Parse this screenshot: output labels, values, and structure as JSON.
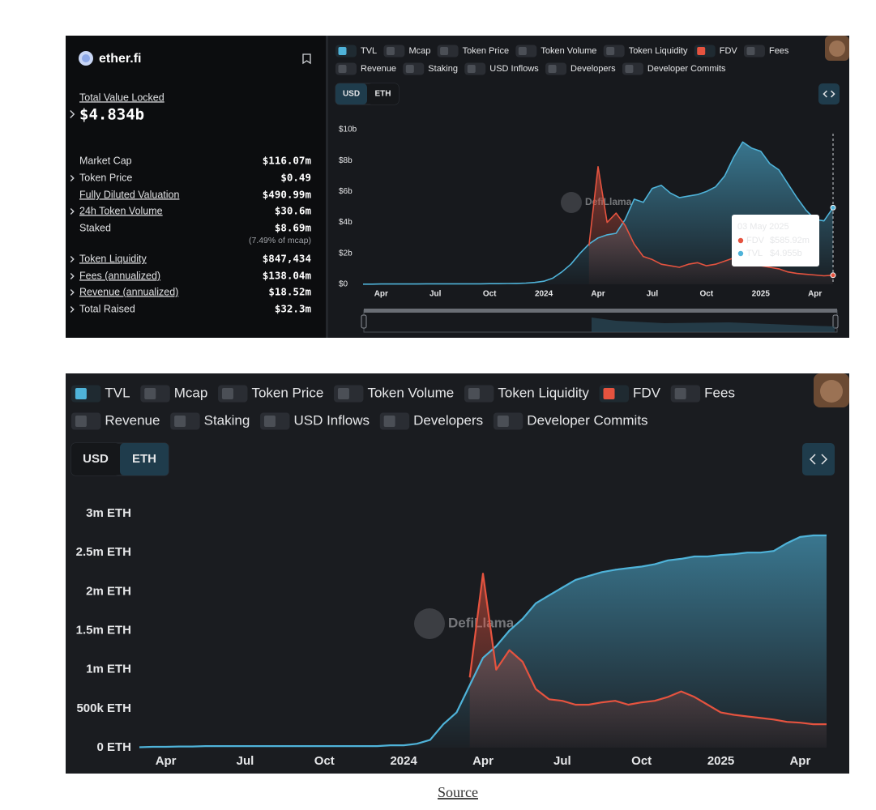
{
  "panel": {
    "protocol": "ether.fi",
    "tvl_label": "Total Value Locked",
    "tvl": "$4.834b",
    "rows": [
      {
        "label": "Market Cap",
        "value": "$116.07m"
      },
      {
        "label": "Token Price",
        "value": "$0.49",
        "expandable": true
      },
      {
        "label": "Fully Diluted Valuation",
        "value": "$490.99m",
        "underline": true
      },
      {
        "label": "24h Token Volume",
        "value": "$30.6m",
        "expandable": true,
        "underline": true
      },
      {
        "label": "Staked",
        "value": "$8.69m",
        "note": "(7.49% of mcap)"
      },
      {
        "label": "Token Liquidity",
        "value": "$847,434",
        "expandable": true,
        "underline": true
      },
      {
        "label": "Fees (annualized)",
        "value": "$138.04m",
        "expandable": true,
        "underline": true
      },
      {
        "label": "Revenue (annualized)",
        "value": "$18.52m",
        "expandable": true,
        "underline": true
      },
      {
        "label": "Total Raised",
        "value": "$32.3m",
        "expandable": true
      }
    ]
  },
  "chart_data": [
    {
      "type": "area",
      "currency_options": [
        "USD",
        "ETH"
      ],
      "currency": "USD",
      "watermark": "DefiLlama",
      "grid": false,
      "other_metrics": [
        "Mcap",
        "Token Price",
        "Token Volume",
        "Token Liquidity",
        "Fees",
        "Revenue",
        "Staking",
        "USD Inflows",
        "Developers",
        "Developer Commits"
      ],
      "categories": [
        null,
        null,
        "Apr",
        null,
        null,
        null,
        null,
        null,
        "Jul",
        null,
        null,
        null,
        null,
        null,
        "Oct",
        null,
        null,
        null,
        null,
        null,
        "2024",
        null,
        null,
        null,
        null,
        null,
        "Apr",
        null,
        null,
        null,
        null,
        null,
        "Jul",
        null,
        null,
        null,
        null,
        null,
        "Oct",
        null,
        null,
        null,
        null,
        null,
        "2025",
        null,
        null,
        null,
        null,
        null,
        "Apr",
        null,
        null
      ],
      "series": [
        {
          "name": "TVL",
          "color": "#4fb3d9",
          "values": [
            0.01,
            0.01,
            0.02,
            0.02,
            0.02,
            0.02,
            0.02,
            0.03,
            0.03,
            0.03,
            0.03,
            0.03,
            0.03,
            0.03,
            0.04,
            0.04,
            0.05,
            0.06,
            0.08,
            0.12,
            0.2,
            0.4,
            0.8,
            1.3,
            2,
            2.6,
            3,
            3.2,
            3.3,
            4.2,
            5.5,
            5.3,
            6.2,
            6.4,
            5.9,
            5.6,
            5.7,
            5.8,
            6,
            6.3,
            7,
            8.2,
            9.2,
            8.8,
            8.6,
            7.8,
            7.4,
            6.5,
            5.6,
            4.8,
            4.2,
            4.1,
            4.955
          ]
        },
        {
          "name": "FDV",
          "color": "#e5533f",
          "values": [
            null,
            null,
            null,
            null,
            null,
            null,
            null,
            null,
            null,
            null,
            null,
            null,
            null,
            null,
            null,
            null,
            null,
            null,
            null,
            null,
            null,
            null,
            null,
            null,
            null,
            2.5,
            7.6,
            4,
            4.6,
            3.8,
            2.6,
            1.8,
            1.6,
            1.3,
            1.2,
            1.1,
            1.3,
            1.4,
            1.2,
            1.3,
            1.5,
            1.7,
            1.6,
            1.3,
            1.2,
            1.1,
            1,
            0.8,
            0.7,
            0.65,
            0.6,
            0.55,
            0.58592
          ]
        }
      ],
      "ylim": [
        0,
        10
      ],
      "yticks": [
        {
          "value": 0,
          "label": "$0"
        },
        {
          "value": 2,
          "label": "$2b"
        },
        {
          "value": 4,
          "label": "$4b"
        },
        {
          "value": 6,
          "label": "$6b"
        },
        {
          "value": 8,
          "label": "$8b"
        },
        {
          "value": 10,
          "label": "$10b"
        }
      ],
      "tooltip": {
        "date": "03 May 2025",
        "items": [
          {
            "name": "FDV",
            "value": 0.58592,
            "label": "$585.92m"
          },
          {
            "name": "TVL",
            "value": 4.955,
            "label": "$4.955b"
          }
        ]
      }
    },
    {
      "type": "area",
      "currency_options": [
        "USD",
        "ETH"
      ],
      "currency": "ETH",
      "watermark": "DefiLlama",
      "grid": false,
      "other_metrics": [
        "Mcap",
        "Token Price",
        "Token Volume",
        "Token Liquidity",
        "Fees",
        "Revenue",
        "Staking",
        "USD Inflows",
        "Developers",
        "Developer Commits"
      ],
      "categories": [
        null,
        null,
        "Apr",
        null,
        null,
        null,
        null,
        null,
        "Jul",
        null,
        null,
        null,
        null,
        null,
        "Oct",
        null,
        null,
        null,
        null,
        null,
        "2024",
        null,
        null,
        null,
        null,
        null,
        "Apr",
        null,
        null,
        null,
        null,
        null,
        "Jul",
        null,
        null,
        null,
        null,
        null,
        "Oct",
        null,
        null,
        null,
        null,
        null,
        "2025",
        null,
        null,
        null,
        null,
        null,
        "Apr",
        null,
        null
      ],
      "series": [
        {
          "name": "TVL",
          "color": "#4fb3d9",
          "values": [
            0.005,
            0.01,
            0.01,
            0.015,
            0.015,
            0.02,
            0.02,
            0.02,
            0.02,
            0.02,
            0.02,
            0.02,
            0.02,
            0.02,
            0.02,
            0.02,
            0.02,
            0.02,
            0.02,
            0.03,
            0.03,
            0.05,
            0.1,
            0.3,
            0.45,
            0.8,
            1.15,
            1.3,
            1.5,
            1.65,
            1.85,
            1.95,
            2.05,
            2.15,
            2.2,
            2.25,
            2.28,
            2.3,
            2.32,
            2.35,
            2.4,
            2.42,
            2.45,
            2.45,
            2.47,
            2.48,
            2.5,
            2.5,
            2.52,
            2.62,
            2.7,
            2.72,
            2.72
          ]
        },
        {
          "name": "FDV",
          "color": "#e5533f",
          "values": [
            null,
            null,
            null,
            null,
            null,
            null,
            null,
            null,
            null,
            null,
            null,
            null,
            null,
            null,
            null,
            null,
            null,
            null,
            null,
            null,
            null,
            null,
            null,
            null,
            null,
            0.9,
            2.23,
            1,
            1.25,
            1.1,
            0.75,
            0.62,
            0.6,
            0.55,
            0.55,
            0.58,
            0.6,
            0.55,
            0.58,
            0.6,
            0.65,
            0.72,
            0.65,
            0.55,
            0.45,
            0.42,
            0.4,
            0.38,
            0.36,
            0.33,
            0.32,
            0.3,
            0.3
          ]
        }
      ],
      "ylim": [
        0,
        3
      ],
      "yticks": [
        {
          "value": 0,
          "label": "0 ETH"
        },
        {
          "value": 0.5,
          "label": "500k ETH"
        },
        {
          "value": 1,
          "label": "1m ETH"
        },
        {
          "value": 1.5,
          "label": "1.5m ETH"
        },
        {
          "value": 2,
          "label": "2m ETH"
        },
        {
          "value": 2.5,
          "label": "2.5m ETH"
        },
        {
          "value": 3,
          "label": "3m ETH"
        }
      ]
    }
  ],
  "source_link": "Source"
}
